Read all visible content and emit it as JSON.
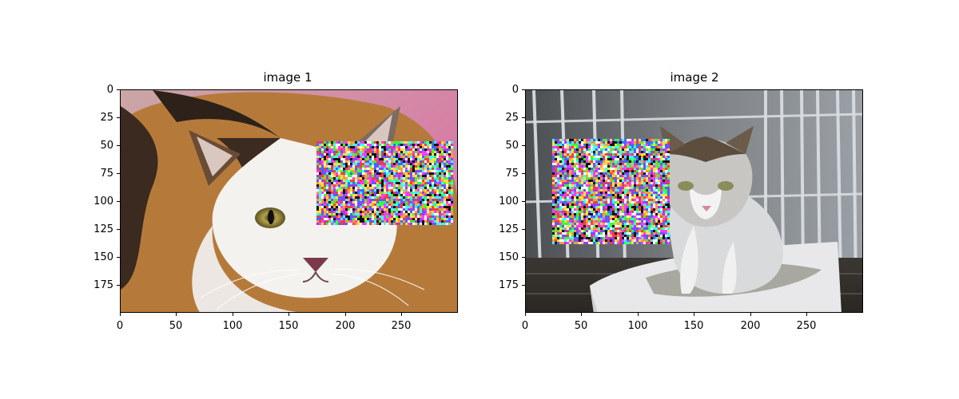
{
  "panels": [
    {
      "title": "image 1",
      "yticks": [
        "0",
        "25",
        "50",
        "75",
        "100",
        "125",
        "150",
        "175"
      ],
      "xticks": [
        "0",
        "50",
        "100",
        "150",
        "200",
        "250"
      ],
      "content": "calico-cat-closeup",
      "noise_patch": true
    },
    {
      "title": "image 2",
      "yticks": [
        "0",
        "25",
        "50",
        "75",
        "100",
        "125",
        "150",
        "175"
      ],
      "xticks": [
        "0",
        "50",
        "100",
        "150",
        "200",
        "250"
      ],
      "content": "cat-in-litter-box-cage",
      "noise_patch": true
    }
  ],
  "colors": {
    "cat1_bg": "#d77ea6",
    "cat1_fur_dark": "#3a2a1f",
    "cat1_fur_orange": "#b57a3a",
    "cat1_white": "#f4f2ef",
    "cat2_bg": "#6b6f73",
    "cat2_box": "#e8e8ea"
  }
}
